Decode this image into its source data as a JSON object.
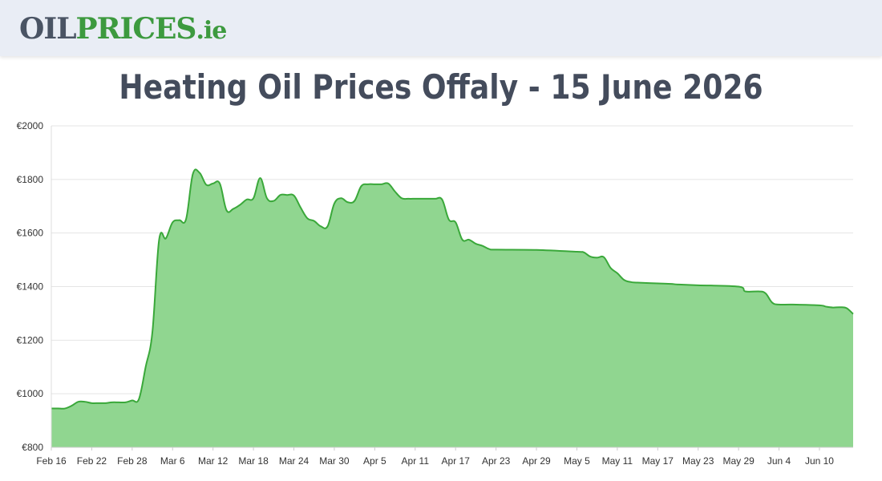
{
  "header": {
    "logo_part1": "OIL",
    "logo_part2": "PRICES",
    "logo_part3": ".ie"
  },
  "page": {
    "title": "Heating Oil Prices Offaly - 15 June 2026"
  },
  "colors": {
    "header_bg": "#e9edf5",
    "logo_dark": "#4a5464",
    "logo_green": "#3d9a3f",
    "line": "#3aa83a",
    "fill": "#90d690",
    "grid": "#e4e4e4"
  },
  "chart_data": {
    "type": "area",
    "title": "",
    "xlabel": "",
    "ylabel": "",
    "ylim": [
      800,
      2000
    ],
    "y_ticks": [
      800,
      1000,
      1200,
      1400,
      1600,
      1800,
      2000
    ],
    "y_tick_labels": [
      "€800",
      "€1000",
      "€1200",
      "€1400",
      "€1600",
      "€1800",
      "€2000"
    ],
    "x_ticks": [
      "Feb 16",
      "Feb 22",
      "Feb 28",
      "Mar 6",
      "Mar 12",
      "Mar 18",
      "Mar 24",
      "Mar 30",
      "Apr 5",
      "Apr 11",
      "Apr 17",
      "Apr 23",
      "Apr 29",
      "May 5",
      "May 11",
      "May 17",
      "May 23",
      "May 29",
      "Jun 4",
      "Jun 10"
    ],
    "x_start": "Feb 16",
    "x_end": "Jun 15",
    "grid": true,
    "legend": "none",
    "series": [
      {
        "points": [
          [
            "Feb 16",
            945
          ],
          [
            "Feb 17",
            945
          ],
          [
            "Feb 18",
            945
          ],
          [
            "Feb 19",
            955
          ],
          [
            "Feb 20",
            970
          ],
          [
            "Feb 21",
            970
          ],
          [
            "Feb 22",
            965
          ],
          [
            "Feb 23",
            965
          ],
          [
            "Feb 24",
            965
          ],
          [
            "Feb 25",
            968
          ],
          [
            "Feb 26",
            968
          ],
          [
            "Feb 27",
            968
          ],
          [
            "Feb 28",
            975
          ],
          [
            "Mar 1",
            980
          ],
          [
            "Mar 2",
            1100
          ],
          [
            "Mar 3",
            1230
          ],
          [
            "Mar 4",
            1575
          ],
          [
            "Mar 5",
            1580
          ],
          [
            "Mar 6",
            1640
          ],
          [
            "Mar 7",
            1648
          ],
          [
            "Mar 8",
            1652
          ],
          [
            "Mar 9",
            1820
          ],
          [
            "Mar 10",
            1825
          ],
          [
            "Mar 11",
            1780
          ],
          [
            "Mar 12",
            1785
          ],
          [
            "Mar 13",
            1785
          ],
          [
            "Mar 14",
            1685
          ],
          [
            "Mar 15",
            1690
          ],
          [
            "Mar 16",
            1705
          ],
          [
            "Mar 17",
            1725
          ],
          [
            "Mar 18",
            1730
          ],
          [
            "Mar 19",
            1805
          ],
          [
            "Mar 20",
            1730
          ],
          [
            "Mar 21",
            1720
          ],
          [
            "Mar 22",
            1742
          ],
          [
            "Mar 23",
            1742
          ],
          [
            "Mar 24",
            1740
          ],
          [
            "Mar 25",
            1695
          ],
          [
            "Mar 26",
            1655
          ],
          [
            "Mar 27",
            1645
          ],
          [
            "Mar 28",
            1625
          ],
          [
            "Mar 29",
            1625
          ],
          [
            "Mar 30",
            1710
          ],
          [
            "Mar 31",
            1730
          ],
          [
            "Apr 1",
            1715
          ],
          [
            "Apr 2",
            1720
          ],
          [
            "Apr 3",
            1775
          ],
          [
            "Apr 4",
            1782
          ],
          [
            "Apr 5",
            1782
          ],
          [
            "Apr 6",
            1782
          ],
          [
            "Apr 7",
            1785
          ],
          [
            "Apr 8",
            1755
          ],
          [
            "Apr 9",
            1730
          ],
          [
            "Apr 10",
            1728
          ],
          [
            "Apr 11",
            1728
          ],
          [
            "Apr 12",
            1728
          ],
          [
            "Apr 13",
            1728
          ],
          [
            "Apr 14",
            1728
          ],
          [
            "Apr 15",
            1725
          ],
          [
            "Apr 16",
            1650
          ],
          [
            "Apr 17",
            1640
          ],
          [
            "Apr 18",
            1575
          ],
          [
            "Apr 19",
            1575
          ],
          [
            "Apr 20",
            1560
          ],
          [
            "Apr 21",
            1552
          ],
          [
            "Apr 22",
            1540
          ],
          [
            "Apr 23",
            1538
          ],
          [
            "Apr 29",
            1537
          ],
          [
            "May 5",
            1530
          ],
          [
            "May 6",
            1528
          ],
          [
            "May 7",
            1512
          ],
          [
            "May 8",
            1508
          ],
          [
            "May 9",
            1510
          ],
          [
            "May 10",
            1470
          ],
          [
            "May 11",
            1450
          ],
          [
            "May 12",
            1425
          ],
          [
            "May 13",
            1417
          ],
          [
            "May 14",
            1415
          ],
          [
            "May 17",
            1412
          ],
          [
            "May 19",
            1410
          ],
          [
            "May 20",
            1408
          ],
          [
            "May 23",
            1405
          ],
          [
            "May 29",
            1400
          ],
          [
            "May 30",
            1382
          ],
          [
            "Jun 1",
            1382
          ],
          [
            "Jun 2",
            1375
          ],
          [
            "Jun 3",
            1340
          ],
          [
            "Jun 4",
            1333
          ],
          [
            "Jun 6",
            1333
          ],
          [
            "Jun 10",
            1330
          ],
          [
            "Jun 11",
            1325
          ],
          [
            "Jun 12",
            1322
          ],
          [
            "Jun 13",
            1323
          ],
          [
            "Jun 14",
            1320
          ],
          [
            "Jun 15",
            1298
          ]
        ]
      }
    ]
  }
}
